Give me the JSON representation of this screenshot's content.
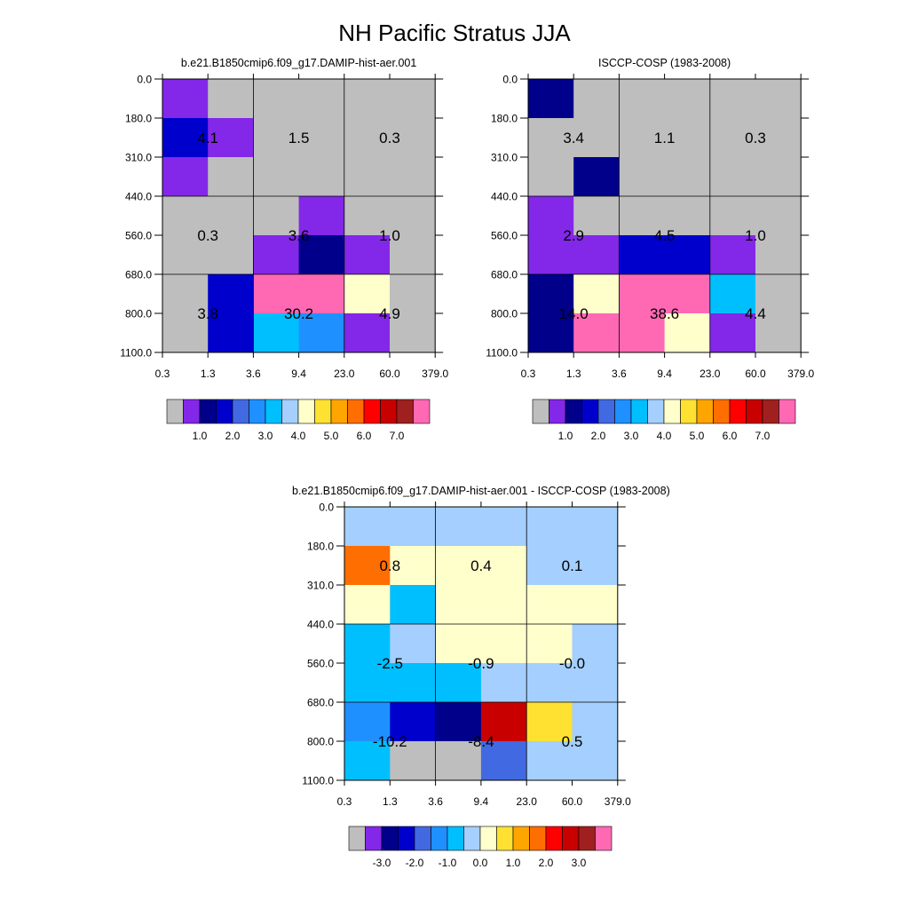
{
  "figure_title": "NH Pacific Stratus JJA",
  "palette": {
    "missing": "#bebebe",
    "abs_colors": [
      "#8327e8",
      "#00008b",
      "#0000cd",
      "#4169e1",
      "#1e90ff",
      "#00bfff",
      "#a4cfff",
      "#ffffcc",
      "#ffe132",
      "#ffa500",
      "#ff6e00",
      "#ff0000",
      "#c80000",
      "#a02020",
      "#ff69b4"
    ],
    "abs_labels": [
      "1.0",
      "2.0",
      "3.0",
      "4.0",
      "5.0",
      "6.0",
      "7.0"
    ],
    "diff_colors": [
      "#8327e8",
      "#00008b",
      "#0000cd",
      "#4169e1",
      "#1e90ff",
      "#00bfff",
      "#a4cfff",
      "#ffffcc",
      "#ffe132",
      "#ffa500",
      "#ff6e00",
      "#ff0000",
      "#c80000",
      "#a02020",
      "#ff69b4"
    ],
    "diff_labels": [
      "-3.0",
      "-2.0",
      "-1.0",
      "0.0",
      "1.0",
      "2.0",
      "3.0"
    ]
  },
  "chart_data": [
    {
      "type": "heatmap",
      "title": "b.e21.B1850cmip6.f09_g17.DAMIP-hist-aer.001",
      "x_ticks": [
        "0.3",
        "1.3",
        "3.6",
        "9.4",
        "23.0",
        "60.0",
        "379.0"
      ],
      "y_ticks": [
        "0.0",
        "180.0",
        "310.0",
        "440.0",
        "560.0",
        "680.0",
        "800.0",
        "1100.0"
      ],
      "cells": [
        [
          "c0",
          "m",
          "m",
          "m",
          "m",
          "m"
        ],
        [
          "c2",
          "c0",
          "m",
          "m",
          "m",
          "m"
        ],
        [
          "c0",
          "m",
          "m",
          "m",
          "m",
          "m"
        ],
        [
          "m",
          "m",
          "m",
          "c0",
          "m",
          "m"
        ],
        [
          "m",
          "m",
          "c0",
          "c1",
          "c0",
          "m"
        ],
        [
          "m",
          "c2",
          "c14",
          "c14",
          "c7",
          "m"
        ],
        [
          "m",
          "c2",
          "c5",
          "c4",
          "c0",
          "m"
        ]
      ],
      "box_values": [
        [
          "4.1",
          "1.5",
          "0.3"
        ],
        [
          "0.3",
          "3.6",
          "1.0"
        ],
        [
          "3.8",
          "30.2",
          "4.9"
        ]
      ],
      "colorbar": "abs"
    },
    {
      "type": "heatmap",
      "title": "ISCCP-COSP (1983-2008)",
      "x_ticks": [
        "0.3",
        "1.3",
        "3.6",
        "9.4",
        "23.0",
        "60.0",
        "379.0"
      ],
      "y_ticks": [
        "0.0",
        "180.0",
        "310.0",
        "440.0",
        "560.0",
        "680.0",
        "800.0",
        "1100.0"
      ],
      "cells": [
        [
          "c1",
          "m",
          "m",
          "m",
          "m",
          "m"
        ],
        [
          "m",
          "m",
          "m",
          "m",
          "m",
          "m"
        ],
        [
          "m",
          "c1",
          "m",
          "m",
          "m",
          "m"
        ],
        [
          "c0",
          "m",
          "m",
          "m",
          "m",
          "m"
        ],
        [
          "c0",
          "c0",
          "c2",
          "c2",
          "c0",
          "m"
        ],
        [
          "c1",
          "c7",
          "c14",
          "c14",
          "c5",
          "m"
        ],
        [
          "c1",
          "c14",
          "c14",
          "c7",
          "c0",
          "m"
        ]
      ],
      "box_values": [
        [
          "3.4",
          "1.1",
          "0.3"
        ],
        [
          "2.9",
          "4.5",
          "1.0"
        ],
        [
          "14.0",
          "38.6",
          "4.4"
        ]
      ],
      "colorbar": "abs"
    },
    {
      "type": "heatmap",
      "title": "b.e21.B1850cmip6.f09_g17.DAMIP-hist-aer.001 - ISCCP-COSP (1983-2008)",
      "x_ticks": [
        "0.3",
        "1.3",
        "3.6",
        "9.4",
        "23.0",
        "60.0",
        "379.0"
      ],
      "y_ticks": [
        "0.0",
        "180.0",
        "310.0",
        "440.0",
        "560.0",
        "680.0",
        "800.0",
        "1100.0"
      ],
      "cells": [
        [
          "c6",
          "c6",
          "c6",
          "c6",
          "c6",
          "c6"
        ],
        [
          "c10",
          "c7",
          "c7",
          "c7",
          "c6",
          "c6"
        ],
        [
          "c7",
          "c5",
          "c7",
          "c7",
          "c7",
          "c7"
        ],
        [
          "c5",
          "c6",
          "c7",
          "c7",
          "c7",
          "c6"
        ],
        [
          "c5",
          "c5",
          "c5",
          "c6",
          "c6",
          "c6"
        ],
        [
          "c4",
          "c2",
          "c1",
          "c12",
          "c8",
          "c6"
        ],
        [
          "c5",
          "m",
          "m",
          "c3",
          "c6",
          "c6"
        ]
      ],
      "box_values": [
        [
          "0.8",
          "0.4",
          "0.1"
        ],
        [
          "-2.5",
          "-0.9",
          "-0.0"
        ],
        [
          "-10.2",
          "-8.4",
          "0.5"
        ]
      ],
      "colorbar": "diff"
    }
  ]
}
